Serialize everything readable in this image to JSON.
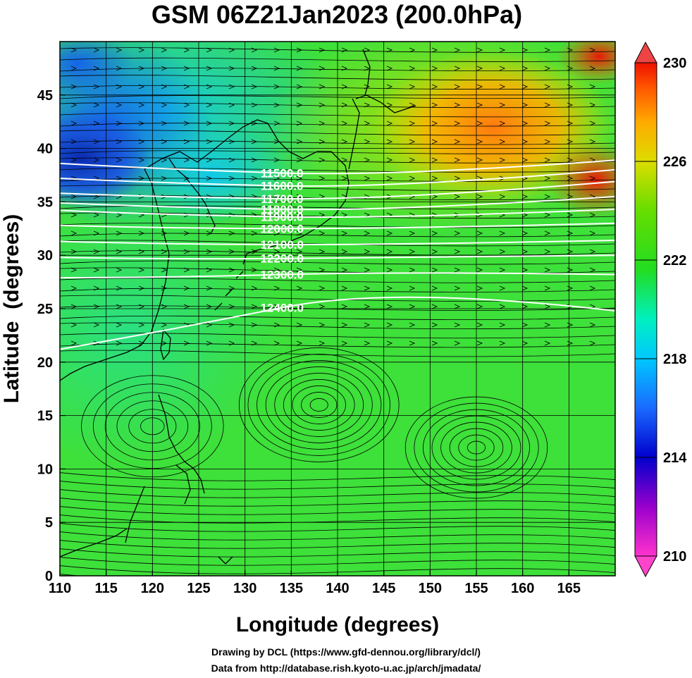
{
  "title": "GSM 06Z21Jan2023 (200.0hPa)",
  "chart_data": {
    "type": "heatmap",
    "title": "GSM 06Z21Jan2023 (200.0hPa)",
    "xlabel": "Longitude (degrees)",
    "ylabel": "Latitude  (degrees)",
    "xlim": [
      110,
      170
    ],
    "ylim": [
      0,
      50
    ],
    "x_ticks": [
      110,
      115,
      120,
      125,
      130,
      135,
      140,
      145,
      150,
      155,
      160,
      165
    ],
    "y_ticks": [
      0,
      5,
      10,
      15,
      20,
      25,
      30,
      35,
      40,
      45
    ],
    "colorbar": {
      "min": 210,
      "max": 230,
      "tick_values": [
        210,
        214,
        218,
        222,
        226,
        230
      ],
      "colors": [
        "#ff33cc",
        "#9900cc",
        "#0000cc",
        "#1a6aff",
        "#00c8ff",
        "#00f0c0",
        "#22dd22",
        "#66dd00",
        "#dddd00",
        "#ffaa00",
        "#ff5500",
        "#ee1100"
      ]
    },
    "temperature_regions": [
      {
        "lon": 112,
        "lat": 40,
        "value": 214
      },
      {
        "lon": 118,
        "lat": 44,
        "value": 216
      },
      {
        "lon": 125,
        "lat": 46,
        "value": 219
      },
      {
        "lon": 140,
        "lat": 40,
        "value": 221
      },
      {
        "lon": 155,
        "lat": 42,
        "value": 226
      },
      {
        "lon": 165,
        "lat": 40,
        "value": 229
      },
      {
        "lon": 140,
        "lat": 15,
        "value": 221
      },
      {
        "lon": 115,
        "lat": 10,
        "value": 220
      }
    ],
    "contours": [
      {
        "label": "11500.0",
        "value": 11500,
        "lat_start": 38.6,
        "lat_mid": 37.7,
        "lat_end": 38.9
      },
      {
        "label": "11600.0",
        "value": 11600,
        "lat_start": 37.2,
        "lat_mid": 36.5,
        "lat_end": 38.0
      },
      {
        "label": "11700.0",
        "value": 11700,
        "lat_start": 35.8,
        "lat_mid": 35.3,
        "lat_end": 36.9
      },
      {
        "label": "11800.0",
        "value": 11800,
        "lat_start": 34.9,
        "lat_mid": 34.3,
        "lat_end": 35.5
      },
      {
        "label": "11900.0",
        "value": 11900,
        "lat_start": 34.2,
        "lat_mid": 33.6,
        "lat_end": 34.3
      },
      {
        "label": "12000.0",
        "value": 12000,
        "lat_start": 32.8,
        "lat_mid": 32.5,
        "lat_end": 33.0
      },
      {
        "label": "12100.0",
        "value": 12100,
        "lat_start": 31.3,
        "lat_mid": 31.0,
        "lat_end": 31.4
      },
      {
        "label": "12200.0",
        "value": 12200,
        "lat_start": 29.8,
        "lat_mid": 29.7,
        "lat_end": 30.0
      },
      {
        "label": "12300.0",
        "value": 12300,
        "lat_start": 27.9,
        "lat_mid": 28.2,
        "lat_end": 28.2
      },
      {
        "label": "12400.0",
        "value": 12400,
        "lat_start": 21.2,
        "lat_mid": 25.1,
        "lat_end": 24.8
      }
    ],
    "contour_label_lon": 134
  },
  "credits": {
    "line1": "Drawing by DCL (https://www.gfd-dennou.org/library/dcl/)",
    "line2": "Data from http://database.rish.kyoto-u.ac.jp/arch/jmadata/"
  }
}
